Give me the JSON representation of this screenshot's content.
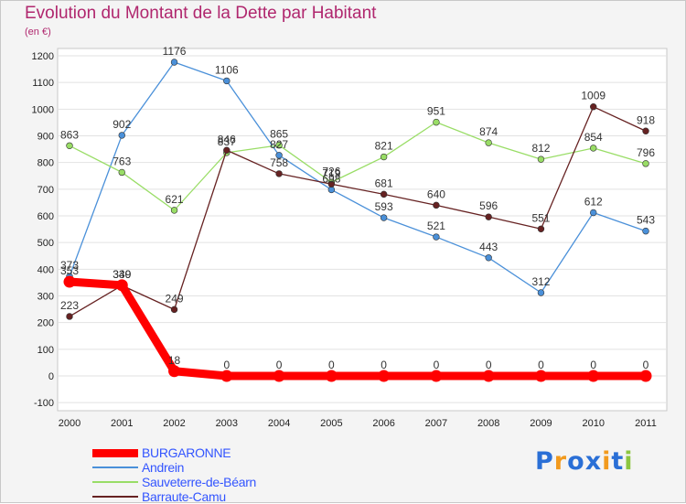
{
  "chart_data": {
    "type": "line",
    "title": "Evolution du Montant de la Dette par Habitant",
    "subtitle": "(en €)",
    "x": [
      "2000",
      "2001",
      "2002",
      "2003",
      "2004",
      "2005",
      "2006",
      "2007",
      "2008",
      "2009",
      "2010",
      "2011"
    ],
    "ylim": [
      -100,
      1200
    ],
    "yticks": [
      -100,
      0,
      100,
      200,
      300,
      400,
      500,
      600,
      700,
      800,
      900,
      1000,
      1100,
      1200
    ],
    "grid": "horizontal",
    "legend_position": "bottom-left",
    "series": [
      {
        "name": "BURGARONNE",
        "color": "#ff0000",
        "values": [
          353,
          340,
          18,
          0,
          0,
          0,
          0,
          0,
          0,
          0,
          0,
          0
        ]
      },
      {
        "name": "Andrein",
        "color": "#4a90d9",
        "values": [
          373,
          902,
          1176,
          1106,
          827,
          698,
          593,
          521,
          443,
          312,
          612,
          543
        ]
      },
      {
        "name": "Sauveterre-de-Béarn",
        "color": "#99dd66",
        "values": [
          863,
          763,
          621,
          837,
          865,
          726,
          821,
          951,
          874,
          812,
          854,
          796
        ]
      },
      {
        "name": "Barraute-Camu",
        "color": "#662222",
        "values": [
          223,
          339,
          249,
          846,
          758,
          719,
          681,
          640,
          596,
          551,
          1009,
          918
        ]
      }
    ]
  },
  "logo": {
    "letters": [
      "P",
      "r",
      "o",
      "x",
      "i",
      "t",
      "i"
    ],
    "colors": [
      "#2a6fd6",
      "#f29a1d",
      "#2a6fd6",
      "#2a6fd6",
      "#f29a1d",
      "#2a6fd6",
      "#8cc63f"
    ]
  }
}
